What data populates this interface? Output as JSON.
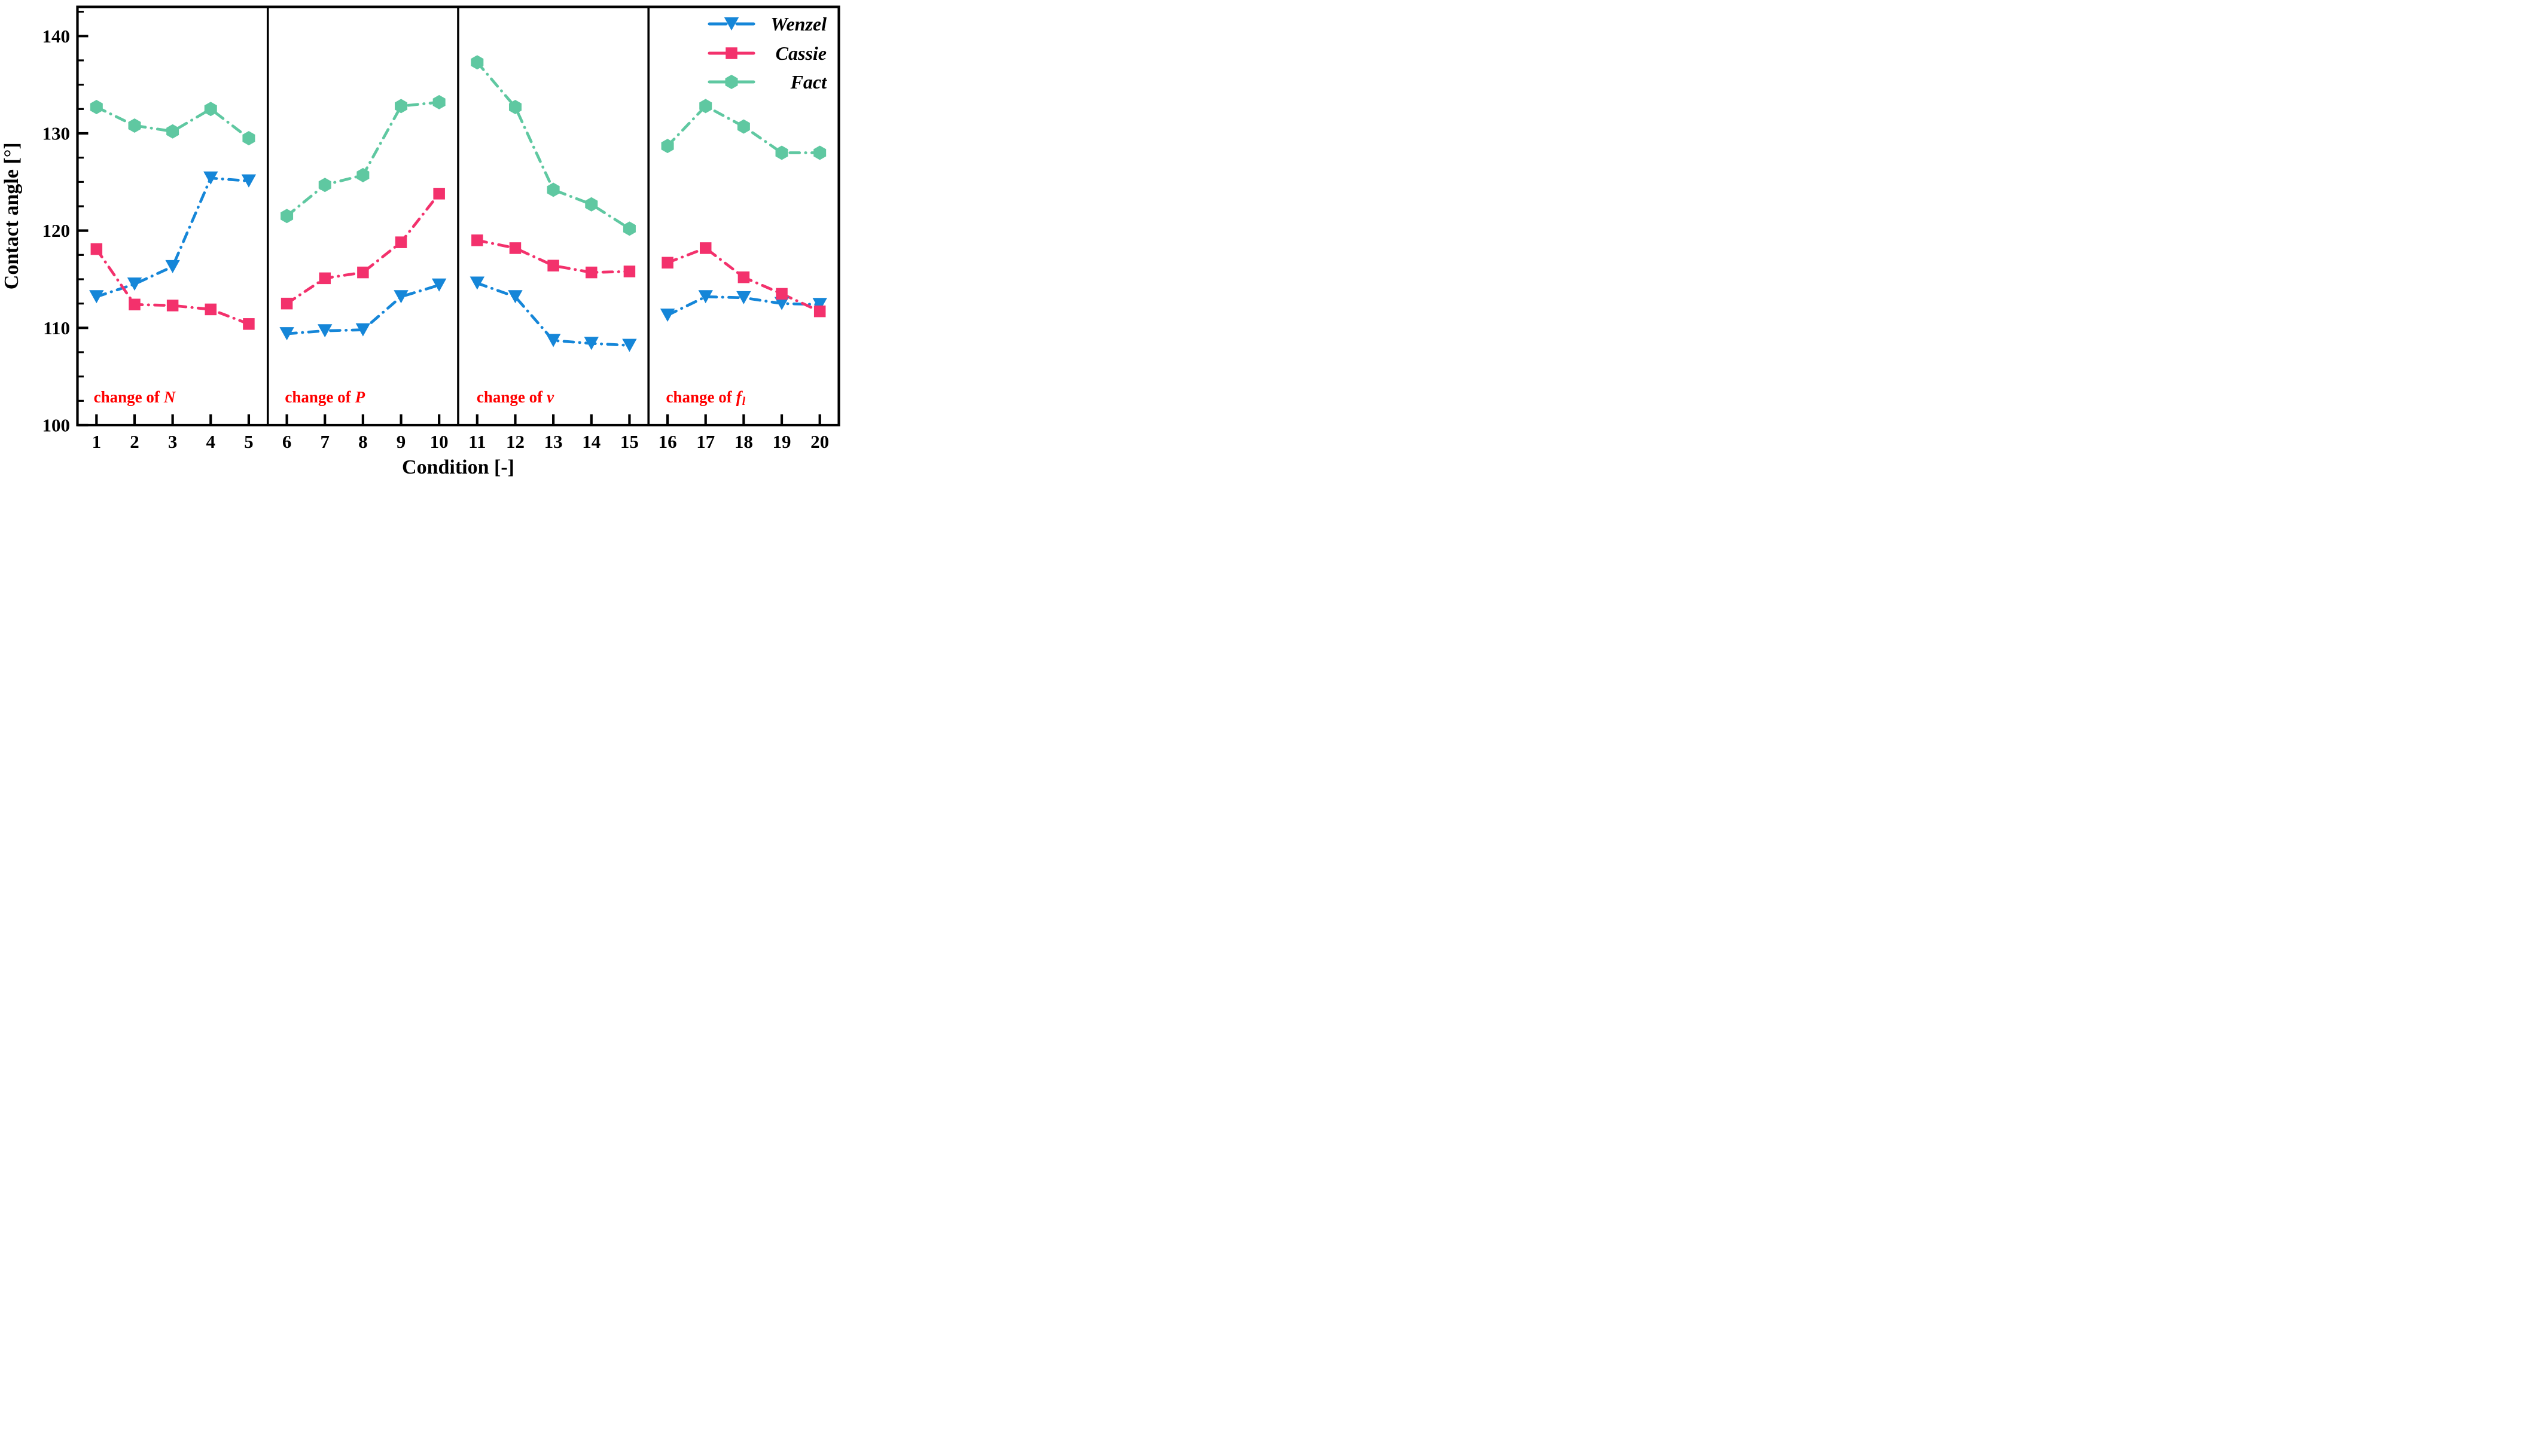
{
  "figure": {
    "xlabel": "Condition [-]",
    "ylabel": "Contact angle [°]"
  },
  "chart_data": {
    "type": "line",
    "title": "",
    "xlabel": "Condition [-]",
    "ylabel": "Contact angle [°]",
    "x": [
      1,
      2,
      3,
      4,
      5,
      6,
      7,
      8,
      9,
      10,
      11,
      12,
      13,
      14,
      15,
      16,
      17,
      18,
      19,
      20
    ],
    "xlim": [
      0.5,
      20.5
    ],
    "ylim": [
      100,
      143
    ],
    "yticks": [
      100,
      110,
      120,
      130,
      140
    ],
    "ytick_minor_step": 2.5,
    "grid": false,
    "legend_position": "top-right-inside",
    "panel_dividers_x": [
      5.5,
      10.5,
      15.5
    ],
    "panel_label_color": "#FF0000",
    "panel_labels": [
      {
        "prefix": "change of",
        "variable": "N",
        "sub": "",
        "x": 2,
        "y": 102.9
      },
      {
        "prefix": "change of",
        "variable": "P",
        "sub": "",
        "x": 7,
        "y": 102.9
      },
      {
        "prefix": "change of",
        "variable": "v",
        "sub": "",
        "x": 12,
        "y": 102.9
      },
      {
        "prefix": "change of",
        "variable": "f",
        "sub": "l",
        "x": 17,
        "y": 102.9
      }
    ],
    "series": [
      {
        "name": "Wenzel",
        "marker": "triangle-down",
        "color": "#1586D8",
        "values": [
          113.2,
          114.5,
          116.3,
          125.4,
          125.1,
          109.4,
          109.7,
          109.8,
          113.2,
          114.4,
          114.6,
          113.2,
          108.7,
          108.4,
          108.2,
          111.3,
          113.2,
          113.1,
          112.5,
          112.4
        ]
      },
      {
        "name": "Cassie",
        "marker": "square",
        "color": "#F3316C",
        "values": [
          118.1,
          112.4,
          112.3,
          111.9,
          110.4,
          112.5,
          115.1,
          115.7,
          118.8,
          123.8,
          119.0,
          118.2,
          116.4,
          115.7,
          115.8,
          116.7,
          118.2,
          115.2,
          113.5,
          111.7
        ]
      },
      {
        "name": "Fact",
        "marker": "hexagon",
        "color": "#5FC8A1",
        "values": [
          132.7,
          130.8,
          130.2,
          132.5,
          129.5,
          121.5,
          124.7,
          125.7,
          132.8,
          133.2,
          137.3,
          132.7,
          124.2,
          122.7,
          120.2,
          128.7,
          132.8,
          130.7,
          128.0,
          128.0
        ]
      }
    ],
    "panel_groups": [
      [
        1,
        5
      ],
      [
        6,
        10
      ],
      [
        11,
        15
      ],
      [
        16,
        20
      ]
    ],
    "axis_color": "#000000"
  }
}
